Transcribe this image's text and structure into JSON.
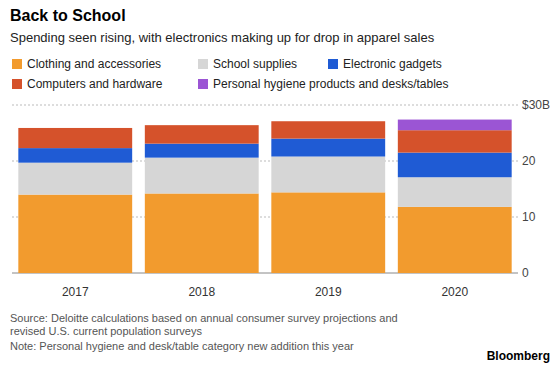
{
  "chart_data": {
    "type": "bar",
    "stacked": true,
    "title": "Back to School",
    "subtitle": "Spending seen rising, with electronics making up for drop in apparel sales",
    "categories": [
      "2017",
      "2018",
      "2019",
      "2020"
    ],
    "series": [
      {
        "name": "Clothing and accessories",
        "color": "#f29b2e",
        "values": [
          14.0,
          14.2,
          14.4,
          11.8
        ]
      },
      {
        "name": "School supplies",
        "color": "#d6d6d6",
        "values": [
          5.7,
          6.4,
          6.4,
          5.3
        ]
      },
      {
        "name": "Electronic gadgets",
        "color": "#1f5bd4",
        "values": [
          2.6,
          2.5,
          3.2,
          4.4
        ]
      },
      {
        "name": "Computers and hardware",
        "color": "#d5522b",
        "values": [
          3.6,
          3.3,
          3.1,
          4.0
        ]
      },
      {
        "name": "Personal hygiene products and desks/tables",
        "color": "#9b55d4",
        "values": [
          null,
          null,
          null,
          1.9
        ]
      }
    ],
    "ylim": [
      0,
      30
    ],
    "yticks": [
      0,
      10,
      20,
      {
        "value": 30,
        "label": "$30B"
      }
    ],
    "grid": true,
    "legend": "top-left",
    "source": [
      "Source: Deloitte calculations based on annual consumer survey projections and",
      "revised U.S. current population surveys"
    ],
    "note": "Note: Personal hygiene and desk/table category new addition this year",
    "credit": "Bloomberg"
  }
}
